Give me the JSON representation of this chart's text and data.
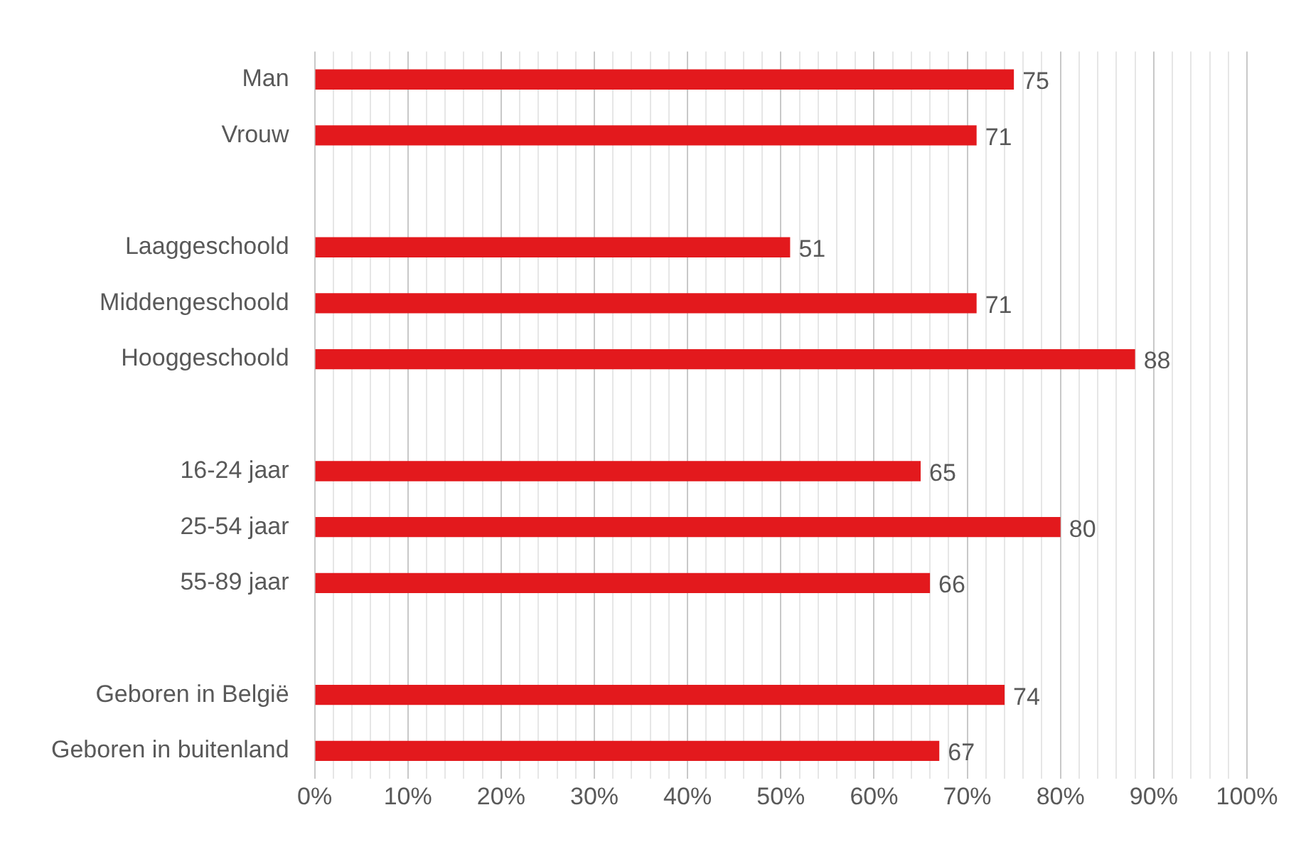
{
  "chart_data": {
    "type": "bar",
    "orientation": "horizontal",
    "categories": [
      "Man",
      "Vrouw",
      null,
      "Laaggeschoold",
      "Middengeschoold",
      "Hooggeschoold",
      null,
      "16-24 jaar",
      "25-54 jaar",
      "55-89 jaar",
      null,
      "Geboren in België",
      "Geboren in buitenland"
    ],
    "values": [
      75,
      71,
      null,
      51,
      71,
      88,
      null,
      65,
      80,
      66,
      null,
      74,
      67
    ],
    "color": "#e3191d",
    "data_labels": true,
    "grid": "x",
    "legend": false,
    "xlim": [
      0,
      100
    ],
    "xticks": [
      {
        "value": 0,
        "label": "0%"
      },
      {
        "value": 2,
        "label": null
      },
      {
        "value": 4,
        "label": null
      },
      {
        "value": 6,
        "label": null
      },
      {
        "value": 8,
        "label": null
      },
      {
        "value": 10,
        "label": "10%"
      },
      {
        "value": 12,
        "label": null
      },
      {
        "value": 14,
        "label": null
      },
      {
        "value": 16,
        "label": null
      },
      {
        "value": 18,
        "label": null
      },
      {
        "value": 20,
        "label": "20%"
      },
      {
        "value": 22,
        "label": null
      },
      {
        "value": 24,
        "label": null
      },
      {
        "value": 26,
        "label": null
      },
      {
        "value": 28,
        "label": null
      },
      {
        "value": 30,
        "label": "30%"
      },
      {
        "value": 32,
        "label": null
      },
      {
        "value": 34,
        "label": null
      },
      {
        "value": 36,
        "label": null
      },
      {
        "value": 38,
        "label": null
      },
      {
        "value": 40,
        "label": "40%"
      },
      {
        "value": 42,
        "label": null
      },
      {
        "value": 44,
        "label": null
      },
      {
        "value": 46,
        "label": null
      },
      {
        "value": 48,
        "label": null
      },
      {
        "value": 50,
        "label": "50%"
      },
      {
        "value": 52,
        "label": null
      },
      {
        "value": 54,
        "label": null
      },
      {
        "value": 56,
        "label": null
      },
      {
        "value": 58,
        "label": null
      },
      {
        "value": 60,
        "label": "60%"
      },
      {
        "value": 62,
        "label": null
      },
      {
        "value": 64,
        "label": null
      },
      {
        "value": 66,
        "label": null
      },
      {
        "value": 68,
        "label": null
      },
      {
        "value": 70,
        "label": "70%"
      },
      {
        "value": 72,
        "label": null
      },
      {
        "value": 74,
        "label": null
      },
      {
        "value": 76,
        "label": null
      },
      {
        "value": 78,
        "label": null
      },
      {
        "value": 80,
        "label": "80%"
      },
      {
        "value": 82,
        "label": null
      },
      {
        "value": 84,
        "label": null
      },
      {
        "value": 86,
        "label": null
      },
      {
        "value": 88,
        "label": null
      },
      {
        "value": 90,
        "label": "90%"
      },
      {
        "value": 92,
        "label": null
      },
      {
        "value": 94,
        "label": null
      },
      {
        "value": 96,
        "label": null
      },
      {
        "value": 98,
        "label": null
      },
      {
        "value": 100,
        "label": "100%"
      }
    ]
  }
}
